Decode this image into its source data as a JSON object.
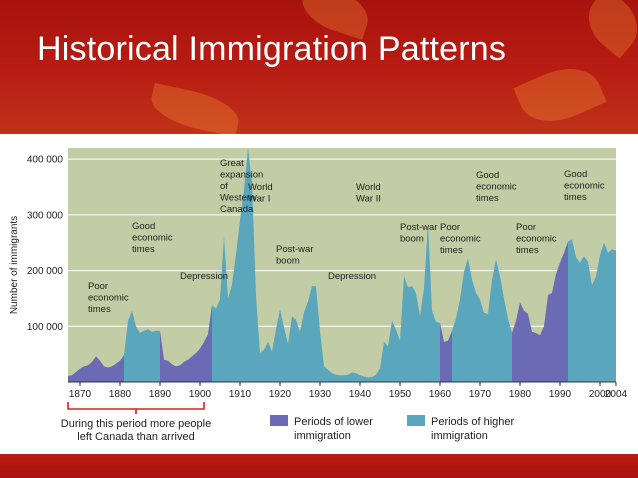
{
  "slide": {
    "title": "Historical Immigration Patterns"
  },
  "chart_data": {
    "type": "area",
    "ylabel": "Number of immigrants",
    "y_ticks": [
      "400 000",
      "300 000",
      "200 000",
      "100 000"
    ],
    "y_tick_values": [
      400000,
      300000,
      200000,
      100000
    ],
    "x_ticks": [
      "1870",
      "1880",
      "1890",
      "1900",
      "1910",
      "1920",
      "1930",
      "1940",
      "1950",
      "1960",
      "1970",
      "1980",
      "1990",
      "2000",
      "2004"
    ],
    "x_tick_values": [
      1870,
      1880,
      1890,
      1900,
      1910,
      1920,
      1930,
      1940,
      1950,
      1960,
      1970,
      1980,
      1990,
      2000,
      2004
    ],
    "xlim": [
      1867,
      2004
    ],
    "ylim": [
      0,
      420000
    ],
    "colors": {
      "lower": "#6a6ab5",
      "higher": "#5aa6bd",
      "plot_bg": "#c3cda5",
      "grid": "#ffffff"
    },
    "legend": {
      "lower": "Periods of lower immigration",
      "higher": "Periods of higher immigration"
    },
    "bracket_note": "During this period more people left Canada than arrived",
    "bracket_range": [
      1867,
      1901
    ],
    "periods": [
      {
        "type": "lower",
        "from": 1867,
        "to": 1881
      },
      {
        "type": "higher",
        "from": 1881,
        "to": 1890
      },
      {
        "type": "lower",
        "from": 1890,
        "to": 1903
      },
      {
        "type": "higher",
        "from": 1903,
        "to": 1957
      },
      {
        "type": "higher",
        "from": 1957,
        "to": 1960
      },
      {
        "type": "lower",
        "from": 1960,
        "to": 1963
      },
      {
        "type": "higher",
        "from": 1963,
        "to": 1978
      },
      {
        "type": "lower",
        "from": 1978,
        "to": 1992
      },
      {
        "type": "higher",
        "from": 1992,
        "to": 2004
      }
    ],
    "series": {
      "x": [
        1867,
        1868,
        1869,
        1870,
        1871,
        1872,
        1873,
        1874,
        1875,
        1876,
        1877,
        1878,
        1879,
        1880,
        1881,
        1882,
        1883,
        1884,
        1885,
        1886,
        1887,
        1888,
        1889,
        1890,
        1891,
        1892,
        1893,
        1894,
        1895,
        1896,
        1897,
        1898,
        1899,
        1900,
        1901,
        1902,
        1903,
        1904,
        1905,
        1906,
        1907,
        1908,
        1909,
        1910,
        1911,
        1912,
        1913,
        1914,
        1915,
        1916,
        1917,
        1918,
        1919,
        1920,
        1921,
        1922,
        1923,
        1924,
        1925,
        1926,
        1927,
        1928,
        1929,
        1930,
        1931,
        1932,
        1933,
        1934,
        1935,
        1936,
        1937,
        1938,
        1939,
        1940,
        1941,
        1942,
        1943,
        1944,
        1945,
        1946,
        1947,
        1948,
        1949,
        1950,
        1951,
        1952,
        1953,
        1954,
        1955,
        1956,
        1957,
        1958,
        1959,
        1960,
        1961,
        1962,
        1963,
        1964,
        1965,
        1966,
        1967,
        1968,
        1969,
        1970,
        1971,
        1972,
        1973,
        1974,
        1975,
        1976,
        1977,
        1978,
        1979,
        1980,
        1981,
        1982,
        1983,
        1984,
        1985,
        1986,
        1987,
        1988,
        1989,
        1990,
        1991,
        1992,
        1993,
        1994,
        1995,
        1996,
        1997,
        1998,
        1999,
        2000,
        2001,
        2002,
        2003,
        2004
      ],
      "y": [
        11000,
        12000,
        18000,
        24000,
        28000,
        30000,
        36000,
        46000,
        38000,
        28000,
        26000,
        28000,
        33000,
        38000,
        48000,
        110000,
        128000,
        100000,
        88000,
        92000,
        95000,
        90000,
        92000,
        92000,
        40000,
        38000,
        32000,
        28000,
        30000,
        36000,
        40000,
        46000,
        52000,
        60000,
        72000,
        86000,
        138000,
        132000,
        148000,
        262000,
        150000,
        175000,
        230000,
        290000,
        345000,
        420000,
        360000,
        155000,
        52000,
        58000,
        72000,
        55000,
        95000,
        130000,
        98000,
        68000,
        118000,
        112000,
        90000,
        125000,
        145000,
        172000,
        172000,
        92000,
        28000,
        22000,
        16000,
        13000,
        12000,
        12000,
        13000,
        17000,
        16000,
        12000,
        10000,
        8000,
        9000,
        13000,
        24000,
        72000,
        64000,
        110000,
        94000,
        74000,
        190000,
        170000,
        172000,
        160000,
        118000,
        168000,
        285000,
        128000,
        108000,
        106000,
        72000,
        74000,
        92000,
        114000,
        148000,
        198000,
        222000,
        184000,
        160000,
        148000,
        124000,
        122000,
        184000,
        220000,
        190000,
        150000,
        114000,
        88000,
        110000,
        143000,
        128000,
        122000,
        90000,
        88000,
        84000,
        100000,
        156000,
        160000,
        194000,
        214000,
        232000,
        252000,
        256000,
        224000,
        214000,
        226000,
        216000,
        174000,
        190000,
        228000,
        250000,
        232000,
        238000,
        236000
      ]
    },
    "annotations": [
      {
        "year": 1874,
        "lines": [
          "Poor",
          "economic",
          "times"
        ]
      },
      {
        "year": 1885,
        "lines": [
          "Good",
          "economic",
          "times"
        ]
      },
      {
        "year": 1897,
        "lines": [
          "Depression"
        ]
      },
      {
        "year": 1907,
        "lines": [
          "Great",
          "expansion",
          "of",
          "Western",
          "Canada"
        ]
      },
      {
        "year": 1914,
        "lines": [
          "World",
          "War I"
        ]
      },
      {
        "year": 1921,
        "lines": [
          "Post-war",
          "boom"
        ]
      },
      {
        "year": 1934,
        "lines": [
          "Depression"
        ]
      },
      {
        "year": 1941,
        "lines": [
          "World",
          "War II"
        ]
      },
      {
        "year": 1952,
        "lines": [
          "Post-war",
          "boom"
        ]
      },
      {
        "year": 1962,
        "lines": [
          "Poor",
          "economic",
          "times"
        ]
      },
      {
        "year": 1971,
        "lines": [
          "Good",
          "economic",
          "times"
        ]
      },
      {
        "year": 1981,
        "lines": [
          "Poor",
          "economic",
          "times"
        ]
      },
      {
        "year": 1993,
        "lines": [
          "Good",
          "economic",
          "times"
        ]
      }
    ]
  }
}
